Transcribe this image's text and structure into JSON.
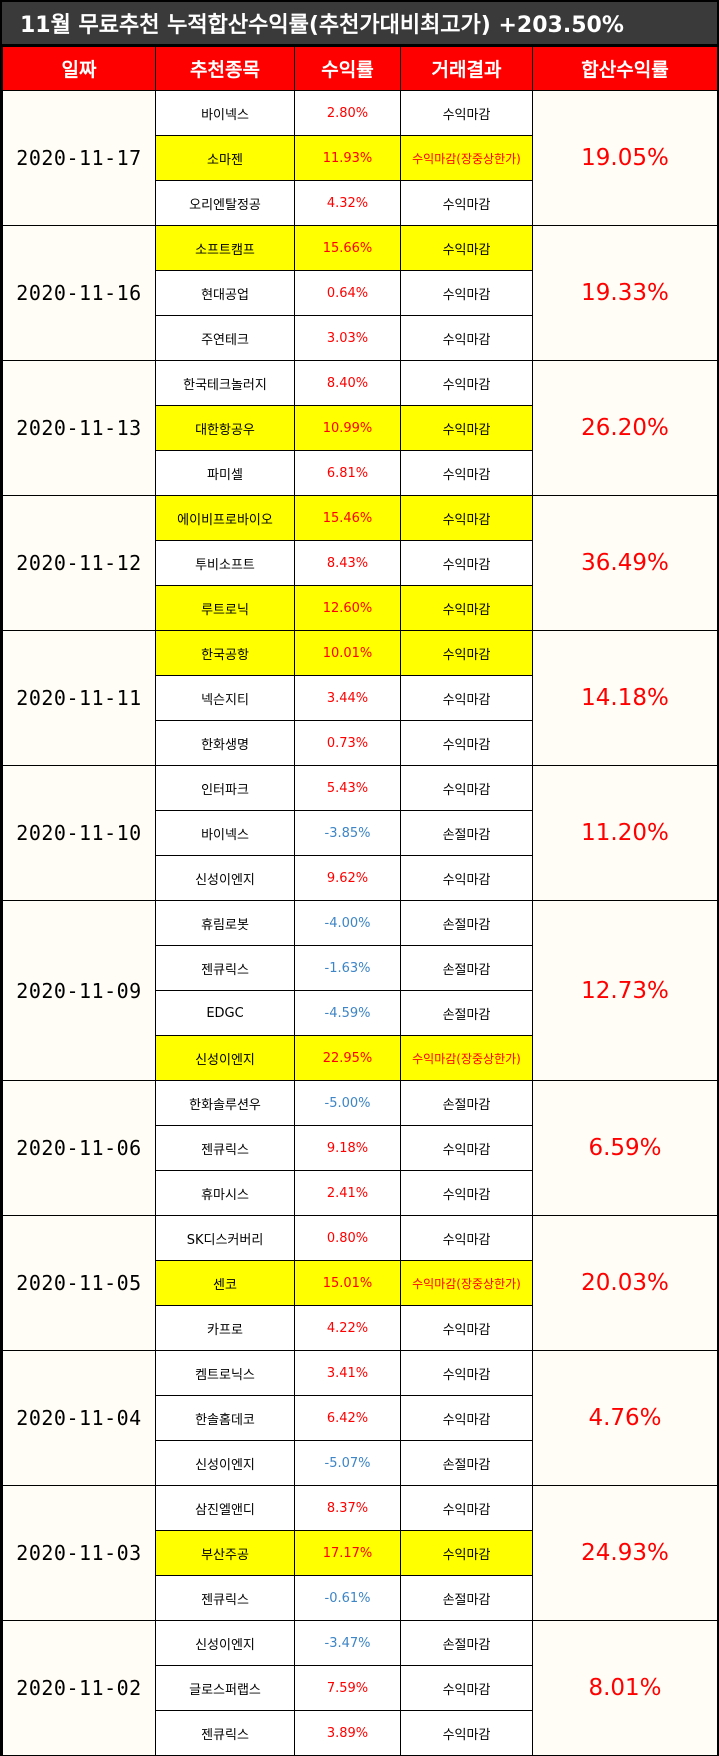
{
  "title": "11월 무료추천 누적합산수익률(추천가대비최고가) +203.50%",
  "headers": [
    "일짜",
    "추천종목",
    "수익률",
    "거래결과",
    "합산수익률"
  ],
  "groups": [
    {
      "date": "2020-11-17",
      "total": "19.05%",
      "items": [
        {
          "name": "바이넥스",
          "rate": "2.80%",
          "result": "수익마감",
          "hl": false,
          "neg": false,
          "red_result": false
        },
        {
          "name": "소마젠",
          "rate": "11.93%",
          "result": "수익마감(장중상한가)",
          "hl": true,
          "neg": false,
          "red_result": true
        },
        {
          "name": "오리엔탈정공",
          "rate": "4.32%",
          "result": "수익마감",
          "hl": false,
          "neg": false,
          "red_result": false
        }
      ]
    },
    {
      "date": "2020-11-16",
      "total": "19.33%",
      "items": [
        {
          "name": "소프트캠프",
          "rate": "15.66%",
          "result": "수익마감",
          "hl": true,
          "neg": false,
          "red_result": false
        },
        {
          "name": "현대공업",
          "rate": "0.64%",
          "result": "수익마감",
          "hl": false,
          "neg": false,
          "red_result": false
        },
        {
          "name": "주연테크",
          "rate": "3.03%",
          "result": "수익마감",
          "hl": false,
          "neg": false,
          "red_result": false
        }
      ]
    },
    {
      "date": "2020-11-13",
      "total": "26.20%",
      "items": [
        {
          "name": "한국테크놀러지",
          "rate": "8.40%",
          "result": "수익마감",
          "hl": false,
          "neg": false,
          "red_result": false
        },
        {
          "name": "대한항공우",
          "rate": "10.99%",
          "result": "수익마감",
          "hl": true,
          "neg": false,
          "red_result": false
        },
        {
          "name": "파미셀",
          "rate": "6.81%",
          "result": "수익마감",
          "hl": false,
          "neg": false,
          "red_result": false
        }
      ]
    },
    {
      "date": "2020-11-12",
      "total": "36.49%",
      "items": [
        {
          "name": "에이비프로바이오",
          "rate": "15.46%",
          "result": "수익마감",
          "hl": true,
          "neg": false,
          "red_result": false
        },
        {
          "name": "투비소프트",
          "rate": "8.43%",
          "result": "수익마감",
          "hl": false,
          "neg": false,
          "red_result": false
        },
        {
          "name": "루트로닉",
          "rate": "12.60%",
          "result": "수익마감",
          "hl": true,
          "neg": false,
          "red_result": false
        }
      ]
    },
    {
      "date": "2020-11-11",
      "total": "14.18%",
      "items": [
        {
          "name": "한국공항",
          "rate": "10.01%",
          "result": "수익마감",
          "hl": true,
          "neg": false,
          "red_result": false
        },
        {
          "name": "넥슨지티",
          "rate": "3.44%",
          "result": "수익마감",
          "hl": false,
          "neg": false,
          "red_result": false
        },
        {
          "name": "한화생명",
          "rate": "0.73%",
          "result": "수익마감",
          "hl": false,
          "neg": false,
          "red_result": false
        }
      ]
    },
    {
      "date": "2020-11-10",
      "total": "11.20%",
      "items": [
        {
          "name": "인터파크",
          "rate": "5.43%",
          "result": "수익마감",
          "hl": false,
          "neg": false,
          "red_result": false
        },
        {
          "name": "바이넥스",
          "rate": "-3.85%",
          "result": "손절마감",
          "hl": false,
          "neg": true,
          "red_result": false
        },
        {
          "name": "신성이엔지",
          "rate": "9.62%",
          "result": "수익마감",
          "hl": false,
          "neg": false,
          "red_result": false
        }
      ]
    },
    {
      "date": "2020-11-09",
      "total": "12.73%",
      "items": [
        {
          "name": "휴림로봇",
          "rate": "-4.00%",
          "result": "손절마감",
          "hl": false,
          "neg": true,
          "red_result": false
        },
        {
          "name": "젠큐릭스",
          "rate": "-1.63%",
          "result": "손절마감",
          "hl": false,
          "neg": true,
          "red_result": false
        },
        {
          "name": "EDGC",
          "rate": "-4.59%",
          "result": "손절마감",
          "hl": false,
          "neg": true,
          "red_result": false
        },
        {
          "name": "신성이엔지",
          "rate": "22.95%",
          "result": "수익마감(장중상한가)",
          "hl": true,
          "neg": false,
          "red_result": true
        }
      ]
    },
    {
      "date": "2020-11-06",
      "total": "6.59%",
      "items": [
        {
          "name": "한화솔루션우",
          "rate": "-5.00%",
          "result": "손절마감",
          "hl": false,
          "neg": true,
          "red_result": false
        },
        {
          "name": "젠큐릭스",
          "rate": "9.18%",
          "result": "수익마감",
          "hl": false,
          "neg": false,
          "red_result": false
        },
        {
          "name": "휴마시스",
          "rate": "2.41%",
          "result": "수익마감",
          "hl": false,
          "neg": false,
          "red_result": false
        }
      ]
    },
    {
      "date": "2020-11-05",
      "total": "20.03%",
      "items": [
        {
          "name": "SK디스커버리",
          "rate": "0.80%",
          "result": "수익마감",
          "hl": false,
          "neg": false,
          "red_result": false
        },
        {
          "name": "센코",
          "rate": "15.01%",
          "result": "수익마감(장중상한가)",
          "hl": true,
          "neg": false,
          "red_result": true
        },
        {
          "name": "카프로",
          "rate": "4.22%",
          "result": "수익마감",
          "hl": false,
          "neg": false,
          "red_result": false
        }
      ]
    },
    {
      "date": "2020-11-04",
      "total": "4.76%",
      "items": [
        {
          "name": "켐트로닉스",
          "rate": "3.41%",
          "result": "수익마감",
          "hl": false,
          "neg": false,
          "red_result": false
        },
        {
          "name": "한솔홈데코",
          "rate": "6.42%",
          "result": "수익마감",
          "hl": false,
          "neg": false,
          "red_result": false
        },
        {
          "name": "신성이엔지",
          "rate": "-5.07%",
          "result": "손절마감",
          "hl": false,
          "neg": true,
          "red_result": false
        }
      ]
    },
    {
      "date": "2020-11-03",
      "total": "24.93%",
      "items": [
        {
          "name": "삼진엘앤디",
          "rate": "8.37%",
          "result": "수익마감",
          "hl": false,
          "neg": false,
          "red_result": false
        },
        {
          "name": "부산주공",
          "rate": "17.17%",
          "result": "수익마감",
          "hl": true,
          "neg": false,
          "red_result": false
        },
        {
          "name": "젠큐릭스",
          "rate": "-0.61%",
          "result": "손절마감",
          "hl": false,
          "neg": true,
          "red_result": false
        }
      ]
    },
    {
      "date": "2020-11-02",
      "total": "8.01%",
      "items": [
        {
          "name": "신성이엔지",
          "rate": "-3.47%",
          "result": "손절마감",
          "hl": false,
          "neg": true,
          "red_result": false
        },
        {
          "name": "글로스퍼랩스",
          "rate": "7.59%",
          "result": "수익마감",
          "hl": false,
          "neg": false,
          "red_result": false
        },
        {
          "name": "젠큐릭스",
          "rate": "3.89%",
          "result": "수익마감",
          "hl": false,
          "neg": false,
          "red_result": false
        }
      ]
    }
  ]
}
